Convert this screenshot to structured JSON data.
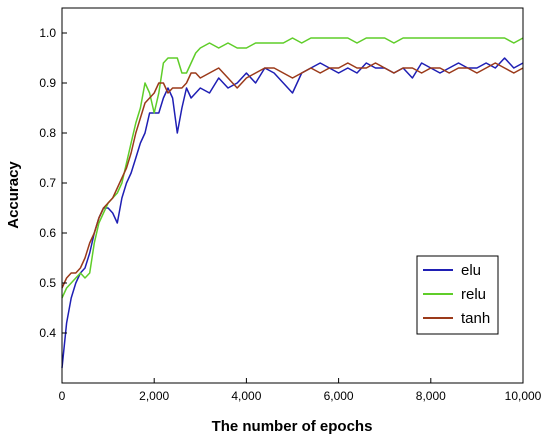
{
  "chart_data": {
    "type": "line",
    "title": "",
    "xlabel": "The number of epochs",
    "ylabel": "Accuracy",
    "xlim": [
      0,
      10000
    ],
    "ylim": [
      0.3,
      1.05
    ],
    "xticks": [
      0,
      2000,
      4000,
      6000,
      8000,
      10000
    ],
    "xtick_labels": [
      "0",
      "2,000",
      "4,000",
      "6,000",
      "8,000",
      "10,000"
    ],
    "yticks": [
      0.4,
      0.5,
      0.6,
      0.7,
      0.8,
      0.9,
      1.0
    ],
    "ytick_labels": [
      "0.4",
      "0.5",
      "0.6",
      "0.7",
      "0.8",
      "0.9",
      "1.0"
    ],
    "grid": false,
    "legend_position": "lower-right",
    "series": [
      {
        "name": "elu",
        "color": "#1f1fb4",
        "x": [
          0,
          100,
          200,
          300,
          400,
          500,
          600,
          700,
          800,
          900,
          1000,
          1100,
          1200,
          1300,
          1400,
          1500,
          1600,
          1700,
          1800,
          1900,
          2000,
          2100,
          2200,
          2300,
          2400,
          2500,
          2600,
          2700,
          2800,
          2900,
          3000,
          3200,
          3400,
          3600,
          3800,
          4000,
          4200,
          4400,
          4600,
          4800,
          5000,
          5200,
          5400,
          5600,
          5800,
          6000,
          6200,
          6400,
          6600,
          6800,
          7000,
          7200,
          7400,
          7600,
          7800,
          8000,
          8200,
          8400,
          8600,
          8800,
          9000,
          9200,
          9400,
          9600,
          9800,
          10000
        ],
        "values": [
          0.33,
          0.42,
          0.47,
          0.5,
          0.52,
          0.53,
          0.56,
          0.6,
          0.63,
          0.65,
          0.65,
          0.64,
          0.62,
          0.67,
          0.7,
          0.72,
          0.75,
          0.78,
          0.8,
          0.84,
          0.84,
          0.84,
          0.87,
          0.89,
          0.87,
          0.8,
          0.85,
          0.89,
          0.87,
          0.88,
          0.89,
          0.88,
          0.91,
          0.89,
          0.9,
          0.92,
          0.9,
          0.93,
          0.92,
          0.9,
          0.88,
          0.92,
          0.93,
          0.94,
          0.93,
          0.92,
          0.93,
          0.92,
          0.94,
          0.93,
          0.93,
          0.92,
          0.93,
          0.91,
          0.94,
          0.93,
          0.92,
          0.93,
          0.94,
          0.93,
          0.93,
          0.94,
          0.93,
          0.95,
          0.93,
          0.94
        ]
      },
      {
        "name": "relu",
        "color": "#5fcd29",
        "x": [
          0,
          100,
          200,
          300,
          400,
          500,
          600,
          700,
          800,
          900,
          1000,
          1100,
          1200,
          1300,
          1400,
          1500,
          1600,
          1700,
          1800,
          1900,
          2000,
          2100,
          2200,
          2300,
          2400,
          2500,
          2600,
          2700,
          2800,
          2900,
          3000,
          3200,
          3400,
          3600,
          3800,
          4000,
          4200,
          4400,
          4600,
          4800,
          5000,
          5200,
          5400,
          5600,
          5800,
          6000,
          6200,
          6400,
          6600,
          6800,
          7000,
          7200,
          7400,
          7600,
          7800,
          8000,
          8200,
          8400,
          8600,
          8800,
          9000,
          9200,
          9400,
          9600,
          9800,
          10000
        ],
        "values": [
          0.47,
          0.49,
          0.5,
          0.51,
          0.52,
          0.51,
          0.52,
          0.58,
          0.62,
          0.64,
          0.66,
          0.67,
          0.68,
          0.7,
          0.74,
          0.78,
          0.82,
          0.85,
          0.9,
          0.88,
          0.84,
          0.88,
          0.94,
          0.95,
          0.95,
          0.95,
          0.92,
          0.92,
          0.94,
          0.96,
          0.97,
          0.98,
          0.97,
          0.98,
          0.97,
          0.97,
          0.98,
          0.98,
          0.98,
          0.98,
          0.99,
          0.98,
          0.99,
          0.99,
          0.99,
          0.99,
          0.99,
          0.98,
          0.99,
          0.99,
          0.99,
          0.98,
          0.99,
          0.99,
          0.99,
          0.99,
          0.99,
          0.99,
          0.99,
          0.99,
          0.99,
          0.99,
          0.99,
          0.99,
          0.98,
          0.99
        ]
      },
      {
        "name": "tanh",
        "color": "#9b3a1a",
        "x": [
          0,
          100,
          200,
          300,
          400,
          500,
          600,
          700,
          800,
          900,
          1000,
          1100,
          1200,
          1300,
          1400,
          1500,
          1600,
          1700,
          1800,
          1900,
          2000,
          2100,
          2200,
          2300,
          2400,
          2500,
          2600,
          2700,
          2800,
          2900,
          3000,
          3200,
          3400,
          3600,
          3800,
          4000,
          4200,
          4400,
          4600,
          4800,
          5000,
          5200,
          5400,
          5600,
          5800,
          6000,
          6200,
          6400,
          6600,
          6800,
          7000,
          7200,
          7400,
          7600,
          7800,
          8000,
          8200,
          8400,
          8600,
          8800,
          9000,
          9200,
          9400,
          9600,
          9800,
          10000
        ],
        "values": [
          0.49,
          0.51,
          0.52,
          0.52,
          0.53,
          0.55,
          0.58,
          0.6,
          0.63,
          0.65,
          0.66,
          0.67,
          0.69,
          0.71,
          0.73,
          0.76,
          0.8,
          0.83,
          0.86,
          0.87,
          0.88,
          0.9,
          0.9,
          0.88,
          0.89,
          0.89,
          0.89,
          0.9,
          0.92,
          0.92,
          0.91,
          0.92,
          0.93,
          0.91,
          0.89,
          0.91,
          0.92,
          0.93,
          0.93,
          0.92,
          0.91,
          0.92,
          0.93,
          0.92,
          0.93,
          0.93,
          0.94,
          0.93,
          0.93,
          0.94,
          0.93,
          0.92,
          0.93,
          0.93,
          0.92,
          0.93,
          0.93,
          0.92,
          0.93,
          0.93,
          0.92,
          0.93,
          0.94,
          0.93,
          0.92,
          0.93
        ]
      }
    ]
  }
}
